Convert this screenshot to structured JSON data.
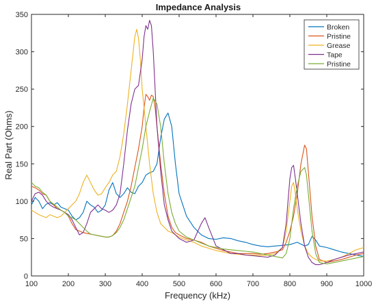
{
  "chart_data": {
    "type": "line",
    "title": "Impedance Analysis",
    "xlabel": "Frequency (kHz)",
    "ylabel": "Real Part (Ohms)",
    "xlim": [
      100,
      1000
    ],
    "ylim": [
      0,
      350
    ],
    "xticks": [
      100,
      200,
      300,
      400,
      500,
      600,
      700,
      800,
      900,
      1000
    ],
    "yticks": [
      0,
      50,
      100,
      150,
      200,
      250,
      300,
      350
    ],
    "grid": false,
    "legend_position": "top-right",
    "series": [
      {
        "name": "Broken",
        "color": "#0072BD",
        "x": [
          100,
          110,
          120,
          130,
          140,
          150,
          160,
          170,
          180,
          190,
          200,
          210,
          220,
          230,
          240,
          250,
          260,
          270,
          280,
          290,
          300,
          310,
          320,
          330,
          340,
          350,
          360,
          370,
          380,
          390,
          400,
          410,
          420,
          430,
          440,
          450,
          460,
          470,
          480,
          490,
          500,
          520,
          540,
          560,
          580,
          600,
          620,
          640,
          660,
          680,
          700,
          720,
          740,
          760,
          780,
          800,
          820,
          840,
          850,
          860,
          870,
          880,
          900,
          920,
          940,
          960,
          980,
          1000
        ],
        "y": [
          95,
          105,
          100,
          90,
          96,
          98,
          95,
          98,
          92,
          90,
          88,
          80,
          75,
          78,
          85,
          100,
          95,
          92,
          85,
          88,
          95,
          115,
          125,
          110,
          105,
          110,
          118,
          112,
          110,
          120,
          125,
          135,
          138,
          140,
          150,
          185,
          210,
          218,
          200,
          150,
          110,
          80,
          65,
          55,
          50,
          49,
          51,
          50,
          47,
          45,
          42,
          40,
          39,
          40,
          41,
          42,
          45,
          40,
          42,
          53,
          48,
          40,
          38,
          35,
          32,
          30,
          28,
          26
        ]
      },
      {
        "name": "Pristine",
        "color": "#D95319",
        "x": [
          100,
          110,
          120,
          130,
          140,
          150,
          160,
          170,
          180,
          190,
          200,
          210,
          220,
          230,
          240,
          250,
          260,
          270,
          280,
          290,
          300,
          310,
          320,
          330,
          340,
          350,
          360,
          370,
          380,
          390,
          400,
          405,
          410,
          415,
          420,
          425,
          430,
          435,
          440,
          450,
          460,
          470,
          480,
          490,
          500,
          520,
          540,
          560,
          580,
          600,
          620,
          640,
          660,
          680,
          700,
          720,
          740,
          760,
          780,
          790,
          800,
          810,
          820,
          830,
          840,
          845,
          850,
          860,
          870,
          880,
          900,
          920,
          940,
          960,
          980,
          1000
        ],
        "y": [
          120,
          118,
          115,
          110,
          108,
          100,
          95,
          90,
          88,
          85,
          80,
          70,
          62,
          60,
          58,
          57,
          56,
          55,
          54,
          53,
          52,
          52,
          54,
          60,
          70,
          85,
          100,
          120,
          145,
          170,
          200,
          225,
          243,
          240,
          235,
          242,
          240,
          225,
          200,
          150,
          110,
          80,
          65,
          58,
          55,
          50,
          48,
          45,
          40,
          37,
          34,
          32,
          30,
          30,
          30,
          29,
          30,
          32,
          35,
          45,
          60,
          80,
          110,
          150,
          175,
          170,
          140,
          80,
          40,
          22,
          18,
          20,
          22,
          25,
          28,
          30
        ]
      },
      {
        "name": "Grease",
        "color": "#EDB120",
        "x": [
          100,
          110,
          120,
          130,
          140,
          150,
          160,
          170,
          180,
          190,
          200,
          210,
          220,
          230,
          240,
          250,
          260,
          270,
          280,
          290,
          300,
          310,
          320,
          330,
          340,
          350,
          360,
          370,
          380,
          385,
          390,
          395,
          400,
          410,
          420,
          430,
          440,
          450,
          460,
          470,
          480,
          490,
          500,
          520,
          540,
          560,
          580,
          600,
          620,
          640,
          660,
          680,
          700,
          720,
          740,
          760,
          780,
          790,
          800,
          805,
          810,
          815,
          820,
          830,
          840,
          850,
          860,
          870,
          880,
          900,
          920,
          940,
          960,
          980,
          1000
        ],
        "y": [
          88,
          85,
          82,
          80,
          78,
          82,
          80,
          78,
          80,
          85,
          90,
          95,
          100,
          110,
          125,
          135,
          125,
          115,
          108,
          110,
          118,
          125,
          135,
          140,
          160,
          190,
          230,
          275,
          320,
          330,
          318,
          290,
          250,
          200,
          150,
          110,
          85,
          70,
          65,
          60,
          58,
          55,
          52,
          48,
          45,
          40,
          37,
          34,
          32,
          30,
          29,
          28,
          28,
          27,
          28,
          30,
          38,
          60,
          100,
          120,
          125,
          110,
          90,
          60,
          40,
          30,
          25,
          22,
          20,
          20,
          22,
          25,
          30,
          35,
          38
        ]
      },
      {
        "name": "Tape",
        "color": "#7E2F8E",
        "x": [
          100,
          110,
          120,
          130,
          140,
          150,
          160,
          170,
          180,
          190,
          200,
          210,
          220,
          230,
          240,
          250,
          260,
          270,
          280,
          290,
          300,
          310,
          320,
          330,
          340,
          350,
          360,
          370,
          380,
          390,
          400,
          405,
          410,
          415,
          420,
          425,
          430,
          440,
          450,
          460,
          470,
          480,
          490,
          500,
          520,
          540,
          560,
          570,
          580,
          600,
          620,
          640,
          660,
          680,
          700,
          720,
          740,
          760,
          780,
          790,
          800,
          805,
          810,
          815,
          820,
          830,
          840,
          850,
          860,
          870,
          880,
          900,
          920,
          940,
          960,
          980,
          1000
        ],
        "y": [
          100,
          110,
          112,
          108,
          100,
          95,
          92,
          90,
          88,
          85,
          82,
          75,
          65,
          55,
          58,
          70,
          85,
          90,
          95,
          90,
          88,
          85,
          88,
          95,
          110,
          150,
          195,
          230,
          250,
          255,
          290,
          320,
          335,
          330,
          342,
          335,
          300,
          200,
          140,
          95,
          75,
          60,
          55,
          50,
          45,
          48,
          70,
          78,
          65,
          40,
          35,
          30,
          30,
          28,
          27,
          26,
          25,
          28,
          38,
          70,
          130,
          145,
          148,
          130,
          110,
          70,
          40,
          25,
          18,
          15,
          15,
          18,
          22,
          25,
          28,
          30,
          32
        ]
      },
      {
        "name": "Pristine",
        "color": "#77AC30",
        "x": [
          100,
          110,
          120,
          130,
          140,
          150,
          160,
          170,
          180,
          190,
          200,
          210,
          220,
          230,
          240,
          250,
          260,
          270,
          280,
          290,
          300,
          310,
          320,
          330,
          340,
          350,
          360,
          370,
          380,
          390,
          400,
          410,
          420,
          430,
          440,
          450,
          460,
          470,
          480,
          490,
          500,
          520,
          540,
          560,
          580,
          600,
          620,
          640,
          660,
          680,
          700,
          720,
          740,
          760,
          780,
          790,
          800,
          810,
          820,
          830,
          840,
          845,
          850,
          860,
          870,
          880,
          900,
          920,
          940,
          960,
          980,
          1000
        ],
        "y": [
          125,
          120,
          118,
          112,
          108,
          100,
          96,
          92,
          88,
          85,
          80,
          78,
          75,
          70,
          65,
          60,
          56,
          55,
          54,
          53,
          52,
          52,
          54,
          58,
          65,
          75,
          90,
          105,
          120,
          145,
          170,
          200,
          220,
          238,
          230,
          200,
          150,
          110,
          85,
          70,
          60,
          52,
          48,
          44,
          40,
          38,
          36,
          35,
          34,
          33,
          32,
          30,
          28,
          26,
          24,
          30,
          50,
          90,
          120,
          140,
          145,
          135,
          110,
          60,
          30,
          18,
          16,
          18,
          20,
          22,
          24,
          26
        ]
      }
    ]
  }
}
